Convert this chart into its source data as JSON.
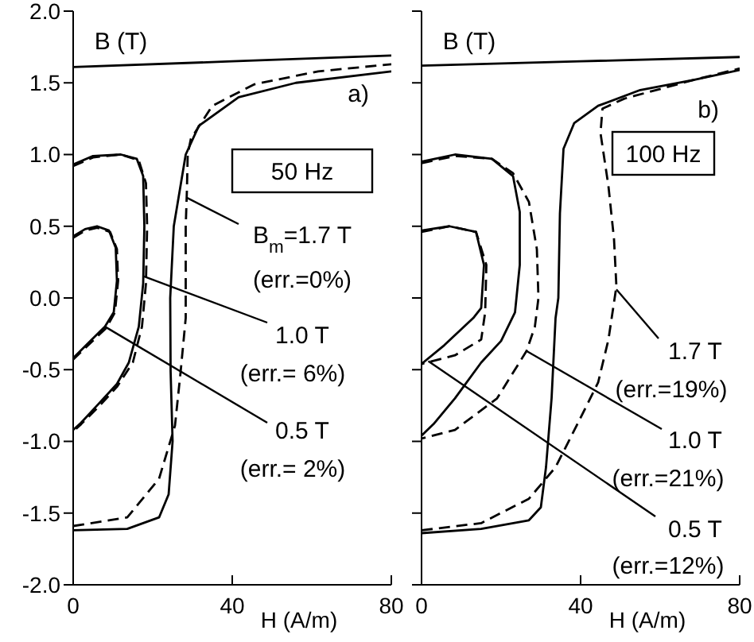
{
  "chart_data": [
    {
      "type": "line",
      "xlabel": "H (A/m)",
      "ylabel": "B (T)",
      "xlim": [
        0,
        80
      ],
      "xticks": [
        0,
        40,
        80
      ],
      "ylim": [
        -2,
        2
      ],
      "yticks": [
        {
          "value": -2,
          "label": "-2.0"
        },
        {
          "value": -1.5,
          "label": "-1.5"
        },
        {
          "value": -1,
          "label": "-1.0"
        },
        {
          "value": -0.5,
          "label": "-0.5"
        },
        {
          "value": 0,
          "label": "0.0"
        },
        {
          "value": 0.5,
          "label": "0.5"
        },
        {
          "value": 1,
          "label": "1.0"
        },
        {
          "value": 1.5,
          "label": "1.5"
        },
        {
          "value": 2,
          "label": "2.0"
        }
      ],
      "grid": false,
      "legend": false,
      "marker": "none",
      "annotations": [
        "a)",
        "50 Hz",
        {
          "text": "B$_{m}$=1.7 T",
          "x": 28.5,
          "y": 0.7
        },
        "(err.=0%)",
        {
          "text": "1.0 T",
          "x": 17.8,
          "y": 0.15
        },
        "(err.= 6%)",
        {
          "text": "0.5 T",
          "x": 8,
          "y": -0.2
        },
        "(err.= 2%)"
      ],
      "series": [
        {
          "color": "#000000",
          "line_style": "solid",
          "x": [
            80,
            40,
            0
          ],
          "values": [
            1.69,
            1.65,
            1.61
          ]
        },
        {
          "color": "#000000",
          "line_style": "solid",
          "x": [
            0,
            13.6,
            21.6,
            24,
            25,
            24.5,
            24.4,
            25.3,
            28.3,
            31.6,
            41.6,
            56,
            80
          ],
          "values": [
            -1.62,
            -1.61,
            -1.53,
            -1.37,
            -1.0,
            -0.51,
            0,
            0.5,
            1.0,
            1.2,
            1.4,
            1.5,
            1.58
          ]
        },
        {
          "color": "#000000",
          "line_style": "dashed",
          "x": [
            0,
            13.6,
            21.6,
            25.6,
            27,
            28.3,
            28.3,
            28.6,
            28.8,
            29.6,
            35,
            45.6,
            61.6,
            80
          ],
          "values": [
            -1.59,
            -1.53,
            -1.26,
            -0.89,
            -0.52,
            -0.14,
            0.5,
            0.75,
            1.0,
            1.11,
            1.34,
            1.49,
            1.58,
            1.63
          ]
        },
        {
          "color": "#000000",
          "line_style": "solid",
          "x": [
            0,
            5,
            12,
            16,
            17.6,
            17.9,
            17.6,
            16.5,
            14,
            11,
            6,
            2,
            0
          ],
          "values": [
            0.93,
            0.99,
            1.0,
            0.97,
            0.85,
            0.5,
            0.1,
            -0.2,
            -0.45,
            -0.6,
            -0.75,
            -0.87,
            -0.92
          ]
        },
        {
          "color": "#000000",
          "line_style": "dashed",
          "x": [
            0,
            5,
            12,
            16.5,
            18.3,
            18.6,
            18.3,
            17.3,
            15,
            11,
            6,
            2,
            0
          ],
          "values": [
            0.92,
            0.98,
            1.0,
            0.96,
            0.8,
            0.5,
            0.1,
            -0.2,
            -0.45,
            -0.62,
            -0.77,
            -0.88,
            -0.93
          ]
        },
        {
          "color": "#000000",
          "line_style": "solid",
          "x": [
            0,
            3,
            6,
            9,
            10.7,
            11,
            10.2,
            8,
            4.3,
            0
          ],
          "values": [
            0.43,
            0.48,
            0.5,
            0.47,
            0.35,
            0.12,
            -0.1,
            -0.2,
            -0.3,
            -0.42
          ]
        },
        {
          "color": "#000000",
          "line_style": "dashed",
          "x": [
            0,
            3,
            6,
            9.3,
            11,
            11.3,
            10.5,
            8.3,
            4.5,
            0
          ],
          "values": [
            0.42,
            0.47,
            0.49,
            0.46,
            0.34,
            0.12,
            -0.1,
            -0.21,
            -0.31,
            -0.43
          ]
        }
      ]
    },
    {
      "type": "line",
      "xlabel": "H (A/m)",
      "ylabel": "B (T)",
      "xlim": [
        0,
        80
      ],
      "xticks": [
        0,
        40,
        80
      ],
      "ylim": [
        -2,
        2
      ],
      "yticks": [
        -2,
        -1.5,
        -1,
        -0.5,
        0,
        0.5,
        1,
        1.5,
        2
      ],
      "tick_labels": "x",
      "grid": false,
      "legend": false,
      "marker": "none",
      "annotations": [
        "b)",
        "100 Hz",
        {
          "text": "1.7 T",
          "x": 49,
          "y": 0.06
        },
        "(err.=19%)",
        {
          "text": "1.0 T",
          "x": 26.4,
          "y": -0.37
        },
        "(err.=21%)",
        {
          "text": "0.5 T",
          "x": 1.7,
          "y": -0.44
        },
        "(err.=12%)"
      ],
      "series": [
        {
          "color": "#000000",
          "line_style": "solid",
          "x": [
            80,
            40,
            0
          ],
          "values": [
            1.68,
            1.65,
            1.62
          ]
        },
        {
          "color": "#000000",
          "line_style": "solid",
          "x": [
            0,
            15,
            27,
            30,
            31.3,
            32.7,
            33.7,
            34.4,
            34.8,
            35.7,
            38.4,
            44.4,
            55,
            68.4,
            80
          ],
          "values": [
            -1.64,
            -1.61,
            -1.55,
            -1.46,
            -1.18,
            -0.7,
            -0.14,
            0,
            0.59,
            1.04,
            1.22,
            1.34,
            1.45,
            1.52,
            1.59
          ]
        },
        {
          "color": "#000000",
          "line_style": "dashed",
          "x": [
            0,
            15,
            27,
            33.7,
            39,
            44.4,
            47,
            49,
            48.4,
            47,
            45,
            45.5,
            51,
            68.4,
            80
          ],
          "values": [
            -1.62,
            -1.57,
            -1.4,
            -1.18,
            -0.89,
            -0.59,
            -0.29,
            0.08,
            0.41,
            0.78,
            1.15,
            1.32,
            1.39,
            1.52,
            1.6
          ]
        },
        {
          "color": "#000000",
          "line_style": "solid",
          "x": [
            0,
            8.4,
            17.7,
            23,
            24.7,
            24.7,
            23.5,
            20,
            15,
            8.4,
            3,
            0
          ],
          "values": [
            0.95,
            1.0,
            0.97,
            0.85,
            0.6,
            0.23,
            -0.1,
            -0.3,
            -0.45,
            -0.7,
            -0.88,
            -0.96
          ]
        },
        {
          "color": "#000000",
          "line_style": "dashed",
          "x": [
            0,
            8.4,
            17.7,
            23,
            27,
            29,
            29.4,
            28.5,
            26.4,
            19,
            8.4,
            0
          ],
          "values": [
            0.94,
            0.99,
            0.97,
            0.87,
            0.67,
            0.34,
            0,
            -0.2,
            -0.37,
            -0.7,
            -0.92,
            -0.98
          ]
        },
        {
          "color": "#000000",
          "line_style": "solid",
          "x": [
            0,
            7,
            13.7,
            15.7,
            15,
            13,
            5.7,
            0
          ],
          "values": [
            0.47,
            0.5,
            0.46,
            0.23,
            -0.07,
            -0.14,
            -0.33,
            -0.46
          ]
        },
        {
          "color": "#000000",
          "line_style": "dashed",
          "x": [
            0,
            7,
            13.7,
            16.3,
            16,
            15,
            8.4,
            0
          ],
          "values": [
            0.46,
            0.5,
            0.46,
            0.23,
            -0.1,
            -0.29,
            -0.4,
            -0.46
          ]
        }
      ]
    }
  ]
}
